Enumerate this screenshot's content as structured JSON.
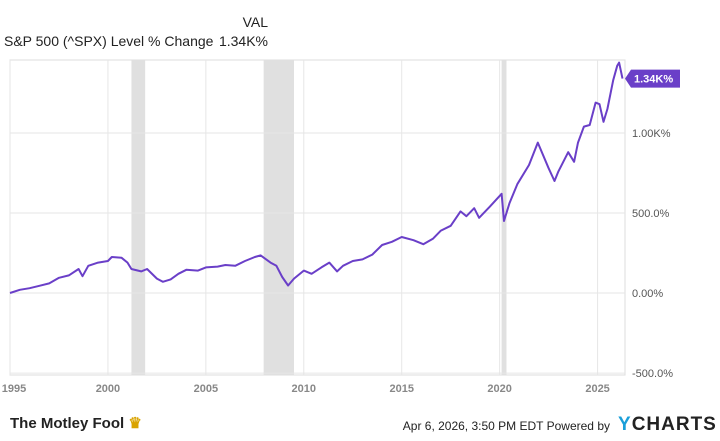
{
  "header": {
    "col_label": "VAL",
    "series_label": "S&P 500 (^SPX) Level % Change",
    "value": "1.34K%"
  },
  "footer": {
    "timestamp": "Apr 6, 2026, 3:50 PM EDT Powered by",
    "brand": "YCHARTS",
    "left_logo": "The Motley Fool"
  },
  "chart_data": {
    "type": "line",
    "title": "",
    "xlabel": "",
    "ylabel": "",
    "xlim": [
      1995.0,
      2026.4
    ],
    "ylim": [
      -512,
      1456
    ],
    "x_ticks": [
      1995,
      2000,
      2005,
      2010,
      2015,
      2020,
      2025
    ],
    "x_tick_labels": [
      "1995",
      "2000",
      "2005",
      "2010",
      "2015",
      "2020",
      "2025"
    ],
    "y_ticks": [
      -500,
      0,
      500,
      1000
    ],
    "y_tick_labels": [
      "-500.0%",
      "0.00%",
      "500.0%",
      "1.00K%"
    ],
    "grid": true,
    "y_axis_side": "right",
    "line_color": "#6a3fc8",
    "shaded_recession_color": "#e0e0e0",
    "recessions": [
      [
        2001.2,
        2001.9
      ],
      [
        2007.95,
        2009.5
      ],
      [
        2020.1,
        2020.35
      ]
    ],
    "last_value_label": "1.34K%",
    "series": [
      {
        "name": "S&P 500 (^SPX) Level % Change",
        "x": [
          1995.0,
          1995.5,
          1996.0,
          1996.5,
          1997.0,
          1997.5,
          1998.0,
          1998.5,
          1998.7,
          1999.0,
          1999.5,
          2000.0,
          2000.2,
          2000.7,
          2001.0,
          2001.2,
          2001.7,
          2002.0,
          2002.5,
          2002.8,
          2003.2,
          2003.6,
          2004.0,
          2004.6,
          2005.0,
          2005.6,
          2006.0,
          2006.5,
          2007.0,
          2007.5,
          2007.8,
          2008.3,
          2008.6,
          2008.9,
          2009.2,
          2009.5,
          2010.0,
          2010.4,
          2010.9,
          2011.3,
          2011.7,
          2012.0,
          2012.5,
          2013.0,
          2013.5,
          2014.0,
          2014.5,
          2015.0,
          2015.6,
          2016.1,
          2016.6,
          2017.0,
          2017.5,
          2018.0,
          2018.3,
          2018.7,
          2018.95,
          2019.5,
          2020.1,
          2020.22,
          2020.5,
          2020.9,
          2021.5,
          2021.95,
          2022.5,
          2022.8,
          2023.0,
          2023.5,
          2023.8,
          2024.0,
          2024.3,
          2024.6,
          2024.9,
          2025.1,
          2025.3,
          2025.5,
          2025.8,
          2026.0,
          2026.1,
          2026.27
        ],
        "y": [
          0,
          20,
          30,
          45,
          60,
          95,
          110,
          150,
          105,
          170,
          190,
          200,
          225,
          220,
          190,
          150,
          135,
          150,
          90,
          70,
          85,
          120,
          145,
          140,
          160,
          165,
          175,
          170,
          200,
          225,
          235,
          190,
          170,
          100,
          47,
          90,
          140,
          120,
          160,
          190,
          135,
          170,
          200,
          210,
          240,
          300,
          320,
          350,
          330,
          305,
          340,
          390,
          420,
          510,
          480,
          530,
          470,
          540,
          620,
          450,
          560,
          680,
          800,
          940,
          780,
          700,
          760,
          880,
          820,
          940,
          1040,
          1050,
          1190,
          1180,
          1070,
          1150,
          1330,
          1420,
          1440,
          1340
        ]
      }
    ]
  }
}
